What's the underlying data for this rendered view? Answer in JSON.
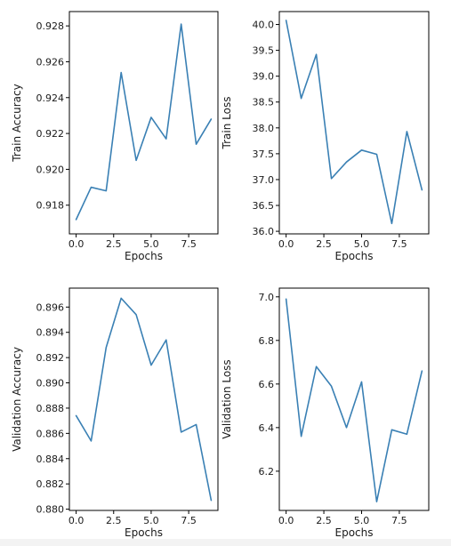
{
  "line_color": "#3a80b4",
  "chart_data": [
    {
      "type": "line",
      "xlabel": "Epochs",
      "ylabel": "Train Accuracy",
      "x": [
        0,
        1,
        2,
        3,
        4,
        5,
        6,
        7,
        8,
        9
      ],
      "series": [
        {
          "values": [
            0.9172,
            0.919,
            0.9188,
            0.9254,
            0.9205,
            0.9229,
            0.9217,
            0.9281,
            0.9214,
            0.9228
          ]
        }
      ],
      "xlim": [
        -0.45,
        9.45
      ],
      "ylim": [
        0.9164,
        0.9288
      ],
      "xticks": [
        0,
        2.5,
        5,
        7.5
      ],
      "xtick_labels": [
        "0.0",
        "2.5",
        "5.0",
        "7.5"
      ],
      "yticks": [
        0.918,
        0.92,
        0.922,
        0.924,
        0.926,
        0.928
      ],
      "ytick_labels": [
        "0.918",
        "0.920",
        "0.922",
        "0.924",
        "0.926",
        "0.928"
      ],
      "grid": false
    },
    {
      "type": "line",
      "xlabel": "Epochs",
      "ylabel": "Train Loss",
      "x": [
        0,
        1,
        2,
        3,
        4,
        5,
        6,
        7,
        8,
        9
      ],
      "series": [
        {
          "values": [
            40.08,
            38.57,
            39.42,
            37.02,
            37.34,
            37.57,
            37.49,
            36.15,
            37.93,
            36.8
          ]
        }
      ],
      "xlim": [
        -0.45,
        9.45
      ],
      "ylim": [
        35.95,
        40.25
      ],
      "xticks": [
        0,
        2.5,
        5,
        7.5
      ],
      "xtick_labels": [
        "0.0",
        "2.5",
        "5.0",
        "7.5"
      ],
      "yticks": [
        36.0,
        36.5,
        37.0,
        37.5,
        38.0,
        38.5,
        39.0,
        39.5,
        40.0
      ],
      "ytick_labels": [
        "36.0",
        "36.5",
        "37.0",
        "37.5",
        "38.0",
        "38.5",
        "39.0",
        "39.5",
        "40.0"
      ],
      "grid": false
    },
    {
      "type": "line",
      "xlabel": "Epochs",
      "ylabel": "Validation Accuracy",
      "x": [
        0,
        1,
        2,
        3,
        4,
        5,
        6,
        7,
        8,
        9
      ],
      "series": [
        {
          "values": [
            0.8874,
            0.8854,
            0.8928,
            0.8967,
            0.8954,
            0.8914,
            0.8934,
            0.8861,
            0.8867,
            0.8807
          ]
        }
      ],
      "xlim": [
        -0.45,
        9.45
      ],
      "ylim": [
        0.8799,
        0.8975
      ],
      "xticks": [
        0,
        2.5,
        5,
        7.5
      ],
      "xtick_labels": [
        "0.0",
        "2.5",
        "5.0",
        "7.5"
      ],
      "yticks": [
        0.88,
        0.882,
        0.884,
        0.886,
        0.888,
        0.89,
        0.892,
        0.894,
        0.896
      ],
      "ytick_labels": [
        "0.880",
        "0.882",
        "0.884",
        "0.886",
        "0.888",
        "0.890",
        "0.892",
        "0.894",
        "0.896"
      ],
      "grid": false
    },
    {
      "type": "line",
      "xlabel": "Epochs",
      "ylabel": "Validation Loss",
      "x": [
        0,
        1,
        2,
        3,
        4,
        5,
        6,
        7,
        8,
        9
      ],
      "series": [
        {
          "values": [
            6.99,
            6.36,
            6.68,
            6.59,
            6.4,
            6.61,
            6.06,
            6.39,
            6.37,
            6.66
          ]
        }
      ],
      "xlim": [
        -0.45,
        9.45
      ],
      "ylim": [
        6.02,
        7.04
      ],
      "xticks": [
        0,
        2.5,
        5,
        7.5
      ],
      "xtick_labels": [
        "0.0",
        "2.5",
        "5.0",
        "7.5"
      ],
      "yticks": [
        6.2,
        6.4,
        6.6,
        6.8,
        7.0
      ],
      "ytick_labels": [
        "6.2",
        "6.4",
        "6.6",
        "6.8",
        "7.0"
      ],
      "grid": false
    }
  ]
}
